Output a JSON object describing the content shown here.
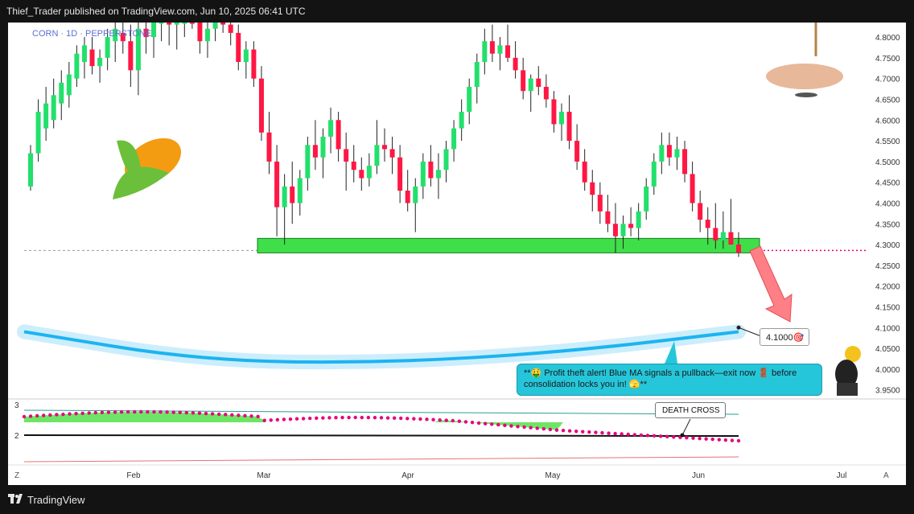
{
  "header": {
    "publish_text": "Thief_Trader published on TradingView.com, Jun 10, 2025 06:41 UTC"
  },
  "symbol_label": "CORN · 1D · PEPPERSTONE",
  "footer": {
    "brand": "TradingView"
  },
  "callout_text": "**🤑 Profit theft alert! Blue MA signals a pullback—exit now 🚪 before consolidation locks you in! 🫣**",
  "target_label": "4.1000🎯",
  "death_cross_label": "DEATH CROSS",
  "corner_left": "Z",
  "corner_right": "A",
  "colors": {
    "up": "#22e06b",
    "down": "#ff1744",
    "support_zone": "#3fdf4a",
    "ma_blue": "#1bb4f0",
    "callout_bg": "#26c6da",
    "ribbon_dots": "#e6007e"
  },
  "chart_data": {
    "type": "candlestick",
    "xlabel": "",
    "ylabel": "",
    "x_ticks": [
      "Feb",
      "Mar",
      "Apr",
      "May",
      "Jun",
      "Jul"
    ],
    "y_ticks": [
      "4.8000",
      "4.7500",
      "4.7000",
      "4.6500",
      "4.6000",
      "4.5500",
      "4.5000",
      "4.4500",
      "4.4000",
      "4.3500",
      "4.3000",
      "4.2500",
      "4.2000",
      "4.1500",
      "4.1000",
      "4.0500",
      "4.0000",
      "3.9500"
    ],
    "ylim": [
      3.93,
      4.835
    ],
    "candles": [
      [
        4.44,
        4.54,
        4.43,
        4.52
      ],
      [
        4.52,
        4.65,
        4.5,
        4.62
      ],
      [
        4.58,
        4.68,
        4.55,
        4.64
      ],
      [
        4.6,
        4.7,
        4.58,
        4.66
      ],
      [
        4.64,
        4.72,
        4.6,
        4.69
      ],
      [
        4.66,
        4.74,
        4.63,
        4.71
      ],
      [
        4.7,
        4.78,
        4.68,
        4.76
      ],
      [
        4.74,
        4.8,
        4.7,
        4.78
      ],
      [
        4.77,
        4.8,
        4.71,
        4.73
      ],
      [
        4.73,
        4.77,
        4.69,
        4.75
      ],
      [
        4.75,
        4.82,
        4.72,
        4.8
      ],
      [
        4.79,
        4.84,
        4.74,
        4.82
      ],
      [
        4.81,
        4.85,
        4.76,
        4.79
      ],
      [
        4.79,
        4.83,
        4.68,
        4.72
      ],
      [
        4.72,
        4.84,
        4.66,
        4.82
      ],
      [
        4.82,
        4.86,
        4.76,
        4.8
      ],
      [
        4.8,
        4.86,
        4.75,
        4.84
      ],
      [
        4.84,
        4.88,
        4.79,
        4.86
      ],
      [
        4.85,
        4.88,
        4.78,
        4.83
      ],
      [
        4.83,
        4.87,
        4.77,
        4.85
      ],
      [
        4.85,
        4.88,
        4.8,
        4.86
      ],
      [
        4.86,
        4.89,
        4.82,
        4.84
      ],
      [
        4.84,
        4.86,
        4.76,
        4.79
      ],
      [
        4.79,
        4.84,
        4.75,
        4.82
      ],
      [
        4.82,
        4.87,
        4.79,
        4.85
      ],
      [
        4.85,
        4.88,
        4.81,
        4.83
      ],
      [
        4.83,
        4.86,
        4.78,
        4.81
      ],
      [
        4.81,
        4.83,
        4.72,
        4.74
      ],
      [
        4.74,
        4.79,
        4.7,
        4.77
      ],
      [
        4.77,
        4.79,
        4.68,
        4.7
      ],
      [
        4.7,
        4.73,
        4.55,
        4.57
      ],
      [
        4.57,
        4.62,
        4.47,
        4.5
      ],
      [
        4.5,
        4.54,
        4.32,
        4.39
      ],
      [
        4.39,
        4.47,
        4.3,
        4.44
      ],
      [
        4.44,
        4.5,
        4.35,
        4.4
      ],
      [
        4.4,
        4.48,
        4.37,
        4.46
      ],
      [
        4.46,
        4.56,
        4.43,
        4.54
      ],
      [
        4.54,
        4.6,
        4.48,
        4.51
      ],
      [
        4.51,
        4.58,
        4.46,
        4.56
      ],
      [
        4.56,
        4.63,
        4.52,
        4.6
      ],
      [
        4.6,
        4.62,
        4.5,
        4.53
      ],
      [
        4.53,
        4.57,
        4.43,
        4.5
      ],
      [
        4.5,
        4.54,
        4.45,
        4.48
      ],
      [
        4.48,
        4.51,
        4.43,
        4.46
      ],
      [
        4.46,
        4.52,
        4.44,
        4.49
      ],
      [
        4.49,
        4.6,
        4.47,
        4.54
      ],
      [
        4.54,
        4.58,
        4.5,
        4.53
      ],
      [
        4.53,
        4.56,
        4.47,
        4.51
      ],
      [
        4.51,
        4.54,
        4.4,
        4.43
      ],
      [
        4.43,
        4.48,
        4.38,
        4.4
      ],
      [
        4.4,
        4.46,
        4.33,
        4.44
      ],
      [
        4.44,
        4.52,
        4.41,
        4.5
      ],
      [
        4.5,
        4.54,
        4.44,
        4.46
      ],
      [
        4.46,
        4.52,
        4.41,
        4.48
      ],
      [
        4.48,
        4.55,
        4.45,
        4.53
      ],
      [
        4.53,
        4.6,
        4.5,
        4.58
      ],
      [
        4.58,
        4.65,
        4.55,
        4.62
      ],
      [
        4.62,
        4.7,
        4.59,
        4.68
      ],
      [
        4.68,
        4.76,
        4.64,
        4.74
      ],
      [
        4.74,
        4.82,
        4.71,
        4.79
      ],
      [
        4.79,
        4.83,
        4.74,
        4.76
      ],
      [
        4.76,
        4.8,
        4.72,
        4.78
      ],
      [
        4.78,
        4.83,
        4.74,
        4.75
      ],
      [
        4.75,
        4.79,
        4.7,
        4.72
      ],
      [
        4.72,
        4.75,
        4.65,
        4.67
      ],
      [
        4.67,
        4.71,
        4.62,
        4.7
      ],
      [
        4.7,
        4.73,
        4.66,
        4.68
      ],
      [
        4.68,
        4.71,
        4.63,
        4.65
      ],
      [
        4.65,
        4.67,
        4.57,
        4.59
      ],
      [
        4.59,
        4.64,
        4.55,
        4.62
      ],
      [
        4.62,
        4.66,
        4.53,
        4.55
      ],
      [
        4.55,
        4.59,
        4.48,
        4.5
      ],
      [
        4.5,
        4.53,
        4.43,
        4.45
      ],
      [
        4.45,
        4.48,
        4.38,
        4.42
      ],
      [
        4.42,
        4.45,
        4.35,
        4.38
      ],
      [
        4.38,
        4.42,
        4.33,
        4.35
      ],
      [
        4.35,
        4.4,
        4.28,
        4.32
      ],
      [
        4.32,
        4.37,
        4.29,
        4.35
      ],
      [
        4.35,
        4.39,
        4.32,
        4.34
      ],
      [
        4.34,
        4.4,
        4.31,
        4.38
      ],
      [
        4.38,
        4.46,
        4.36,
        4.44
      ],
      [
        4.44,
        4.52,
        4.42,
        4.5
      ],
      [
        4.5,
        4.57,
        4.47,
        4.54
      ],
      [
        4.54,
        4.57,
        4.49,
        4.51
      ],
      [
        4.51,
        4.56,
        4.48,
        4.53
      ],
      [
        4.53,
        4.55,
        4.45,
        4.47
      ],
      [
        4.47,
        4.5,
        4.38,
        4.4
      ],
      [
        4.4,
        4.43,
        4.33,
        4.36
      ],
      [
        4.36,
        4.39,
        4.3,
        4.34
      ],
      [
        4.34,
        4.4,
        4.29,
        4.31
      ],
      [
        4.31,
        4.38,
        4.29,
        4.33
      ],
      [
        4.33,
        4.41,
        4.3,
        4.3
      ],
      [
        4.3,
        4.33,
        4.27,
        4.28
      ]
    ],
    "support_zone": [
      4.28,
      4.315
    ],
    "target": 4.1,
    "ma_curve": [
      [
        0,
        4.09
      ],
      [
        0.25,
        4.02
      ],
      [
        0.5,
        4.015
      ],
      [
        0.75,
        4.04
      ],
      [
        1.0,
        4.09
      ]
    ],
    "oscillator_ticks": [
      "3",
      "2"
    ]
  }
}
